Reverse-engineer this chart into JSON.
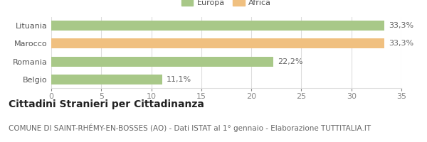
{
  "categories": [
    "Lituania",
    "Marocco",
    "Romania",
    "Belgio"
  ],
  "values": [
    33.3,
    33.3,
    22.2,
    11.1
  ],
  "labels": [
    "33,3%",
    "33,3%",
    "22,2%",
    "11,1%"
  ],
  "colors": [
    "#a8c888",
    "#f0c080",
    "#a8c888",
    "#a8c888"
  ],
  "legend_entries": [
    {
      "label": "Europa",
      "color": "#a8c888"
    },
    {
      "label": "Africa",
      "color": "#f0c080"
    }
  ],
  "xlim": [
    0,
    35
  ],
  "xticks": [
    0,
    5,
    10,
    15,
    20,
    25,
    30,
    35
  ],
  "title": "Cittadini Stranieri per Cittadinanza",
  "subtitle": "COMUNE DI SAINT-RHÉMY-EN-BOSSES (AO) - Dati ISTAT al 1° gennaio - Elaborazione TUTTITALIA.IT",
  "title_fontsize": 10,
  "subtitle_fontsize": 7.5,
  "label_fontsize": 8,
  "tick_fontsize": 8,
  "background_color": "#ffffff",
  "bar_height": 0.55,
  "grid_color": "#dddddd"
}
